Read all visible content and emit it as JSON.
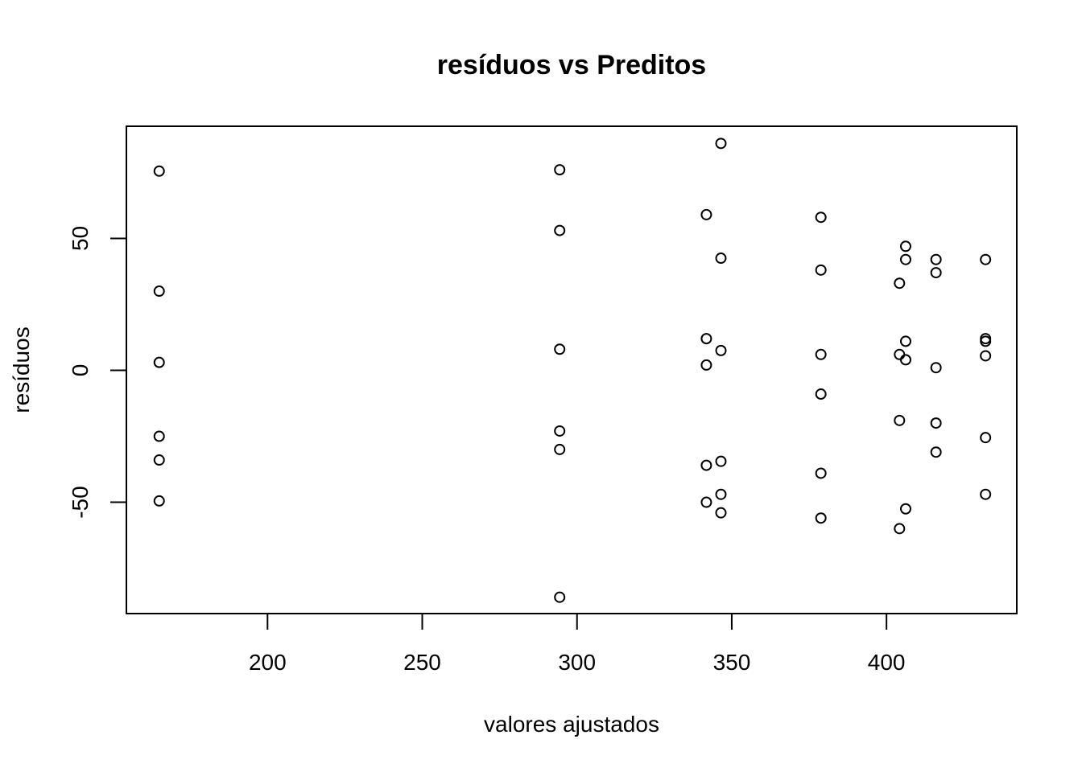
{
  "chart_data": {
    "type": "scatter",
    "title": "resíduos vs Preditos",
    "xlabel": "valores ajustados",
    "ylabel": "resíduos",
    "xlim": [
      154.4,
      442.1
    ],
    "ylim": [
      -92.2,
      92.5
    ],
    "x_ticks": [
      200,
      250,
      300,
      350,
      400
    ],
    "y_ticks": [
      -50,
      0,
      50
    ],
    "x_tick_labels": [
      "200",
      "250",
      "300",
      "350",
      "400"
    ],
    "y_tick_labels": [
      "-50",
      "0",
      "50"
    ],
    "grid": false,
    "legend": "none",
    "marker": "open-circle",
    "color": "#000000",
    "points": [
      {
        "x": 165.0,
        "y": 75.5
      },
      {
        "x": 165.0,
        "y": 30.0
      },
      {
        "x": 165.0,
        "y": 3.0
      },
      {
        "x": 165.0,
        "y": -25.0
      },
      {
        "x": 165.0,
        "y": -34.0
      },
      {
        "x": 165.0,
        "y": -49.5
      },
      {
        "x": 294.4,
        "y": 76.0
      },
      {
        "x": 294.4,
        "y": 53.0
      },
      {
        "x": 294.4,
        "y": 8.0
      },
      {
        "x": 294.4,
        "y": -23.0
      },
      {
        "x": 294.4,
        "y": -30.0
      },
      {
        "x": 294.4,
        "y": -86.0
      },
      {
        "x": 346.5,
        "y": 86.0
      },
      {
        "x": 341.8,
        "y": 59.0
      },
      {
        "x": 346.5,
        "y": 42.5
      },
      {
        "x": 341.8,
        "y": 12.0
      },
      {
        "x": 346.5,
        "y": 7.5
      },
      {
        "x": 341.8,
        "y": 2.0
      },
      {
        "x": 346.5,
        "y": -34.5
      },
      {
        "x": 341.8,
        "y": -36.0
      },
      {
        "x": 346.5,
        "y": -47.0
      },
      {
        "x": 341.8,
        "y": -50.0
      },
      {
        "x": 346.5,
        "y": -54.0
      },
      {
        "x": 378.8,
        "y": 58.0
      },
      {
        "x": 378.8,
        "y": 38.0
      },
      {
        "x": 378.8,
        "y": 6.0
      },
      {
        "x": 378.8,
        "y": -9.0
      },
      {
        "x": 378.8,
        "y": -39.0
      },
      {
        "x": 378.8,
        "y": -56.0
      },
      {
        "x": 406.2,
        "y": 47.0
      },
      {
        "x": 406.2,
        "y": 42.0
      },
      {
        "x": 404.2,
        "y": 33.0
      },
      {
        "x": 406.2,
        "y": 11.0
      },
      {
        "x": 404.2,
        "y": 6.0
      },
      {
        "x": 406.2,
        "y": 4.0
      },
      {
        "x": 404.2,
        "y": -19.0
      },
      {
        "x": 406.2,
        "y": -52.5
      },
      {
        "x": 404.2,
        "y": -60.0
      },
      {
        "x": 416.0,
        "y": 42.0
      },
      {
        "x": 416.0,
        "y": 37.0
      },
      {
        "x": 416.0,
        "y": 1.0
      },
      {
        "x": 416.0,
        "y": -20.0
      },
      {
        "x": 416.0,
        "y": -31.0
      },
      {
        "x": 432.0,
        "y": 42.0
      },
      {
        "x": 432.0,
        "y": 12.0
      },
      {
        "x": 432.0,
        "y": 11.0
      },
      {
        "x": 432.0,
        "y": 5.5
      },
      {
        "x": 432.0,
        "y": -25.5
      },
      {
        "x": 432.0,
        "y": -47.0
      }
    ]
  }
}
